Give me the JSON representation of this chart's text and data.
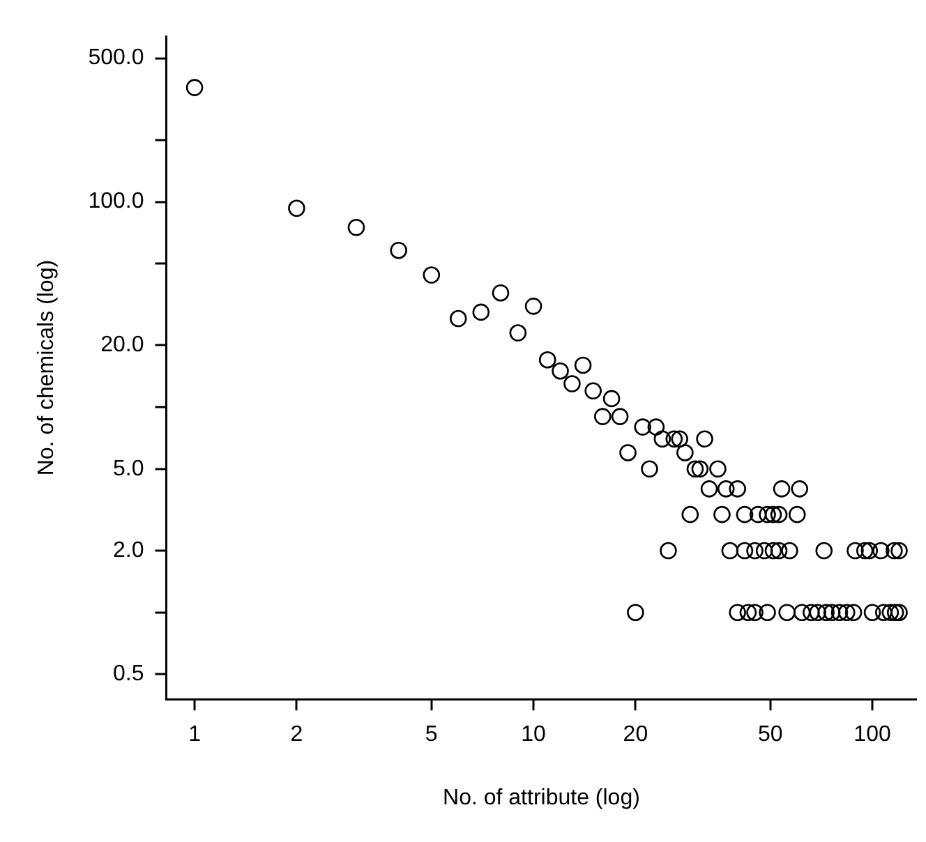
{
  "chart_data": {
    "type": "scatter",
    "xlabel": "No. of attribute (log)",
    "ylabel": "No. of chemicals (log)",
    "log": "xy",
    "marker": "circle",
    "color": "#000000",
    "x": [
      1,
      2,
      3,
      4,
      5,
      6,
      7,
      8,
      9,
      10,
      11,
      12,
      13,
      14,
      15,
      16,
      17,
      18,
      19,
      20,
      21,
      22,
      23,
      24,
      25,
      26,
      27,
      28,
      29,
      30,
      31,
      32,
      33,
      35,
      36,
      37,
      38,
      40,
      40,
      42,
      42,
      43,
      45,
      45,
      46,
      48,
      49,
      49,
      51,
      51,
      53,
      53,
      54,
      56,
      57,
      60,
      61,
      62,
      66,
      69,
      72,
      73,
      76,
      80,
      84,
      88,
      89,
      95,
      98,
      100,
      106,
      108,
      113,
      116,
      117,
      120,
      120
    ],
    "values": [
      360,
      93,
      75,
      58,
      44,
      27,
      29,
      36,
      23,
      31,
      17,
      15,
      13,
      16,
      12,
      9,
      11,
      9,
      6,
      1,
      8,
      5,
      8,
      7,
      2,
      7,
      7,
      6,
      3,
      5,
      5,
      7,
      4,
      5,
      3,
      4,
      2,
      4,
      1,
      3,
      2,
      1,
      2,
      1,
      3,
      2,
      3,
      1,
      3,
      2,
      3,
      2,
      4,
      1,
      2,
      3,
      4,
      1,
      1,
      1,
      2,
      1,
      1,
      1,
      1,
      1,
      2,
      2,
      2,
      1,
      2,
      1,
      1,
      2,
      1,
      2,
      1
    ],
    "xlim": [
      0.825,
      135
    ],
    "ylim": [
      0.378,
      640
    ],
    "xticks": [
      1,
      2,
      5,
      10,
      20,
      50,
      100
    ],
    "yticks": [
      {
        "value": 0.5,
        "label": "0.5"
      },
      {
        "value": 1,
        "label": null
      },
      {
        "value": 2,
        "label": "2.0"
      },
      {
        "value": 5,
        "label": "5.0"
      },
      {
        "value": 10,
        "label": null
      },
      {
        "value": 20,
        "label": "20.0"
      },
      {
        "value": 50,
        "label": null
      },
      {
        "value": 100,
        "label": "100.0"
      },
      {
        "value": 200,
        "label": null
      },
      {
        "value": 500,
        "label": "500.0"
      }
    ],
    "grid": false
  }
}
